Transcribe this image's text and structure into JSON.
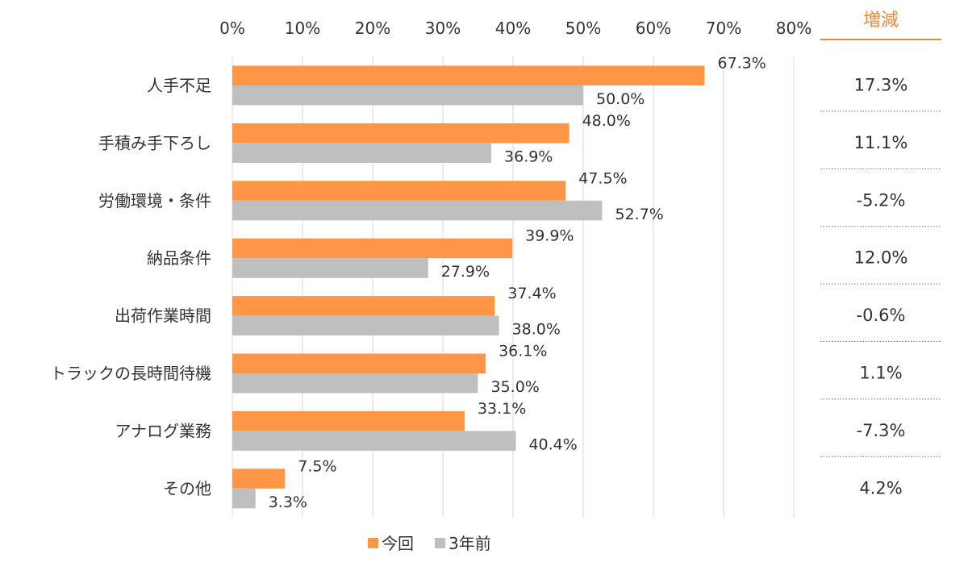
{
  "chart_data": {
    "type": "bar",
    "orientation": "horizontal",
    "categories": [
      "人手不足",
      "手積み手下ろし",
      "労働環境・条件",
      "納品条件",
      "出荷作業時間",
      "トラックの長時間待機",
      "アナログ業務",
      "その他"
    ],
    "series": [
      {
        "name": "今回",
        "color": "#FF9645",
        "values": [
          67.3,
          48.0,
          47.5,
          39.9,
          37.4,
          36.1,
          33.1,
          7.5
        ],
        "labels": [
          "67.3%",
          "48.0%",
          "47.5%",
          "39.9%",
          "37.4%",
          "36.1%",
          "33.1%",
          "7.5%"
        ]
      },
      {
        "name": "3年前",
        "color": "#BFBFBF",
        "values": [
          50.0,
          36.9,
          52.7,
          27.9,
          38.0,
          35.0,
          40.4,
          3.3
        ],
        "labels": [
          "50.0%",
          "36.9%",
          "52.7%",
          "27.9%",
          "38.0%",
          "35.0%",
          "40.4%",
          "3.3%"
        ]
      }
    ],
    "xlim": [
      0,
      80
    ],
    "x_ticks": [
      "0%",
      "10%",
      "20%",
      "30%",
      "40%",
      "50%",
      "60%",
      "70%",
      "80%"
    ],
    "x_axis_position": "top",
    "grid": true,
    "legend": "bottom",
    "diff_header": "増減",
    "diff_header_color": "#F0863A",
    "diff_values": [
      "17.3%",
      "11.1%",
      "-5.2%",
      "12.0%",
      "-0.6%",
      "1.1%",
      "-7.3%",
      "4.2%"
    ]
  }
}
